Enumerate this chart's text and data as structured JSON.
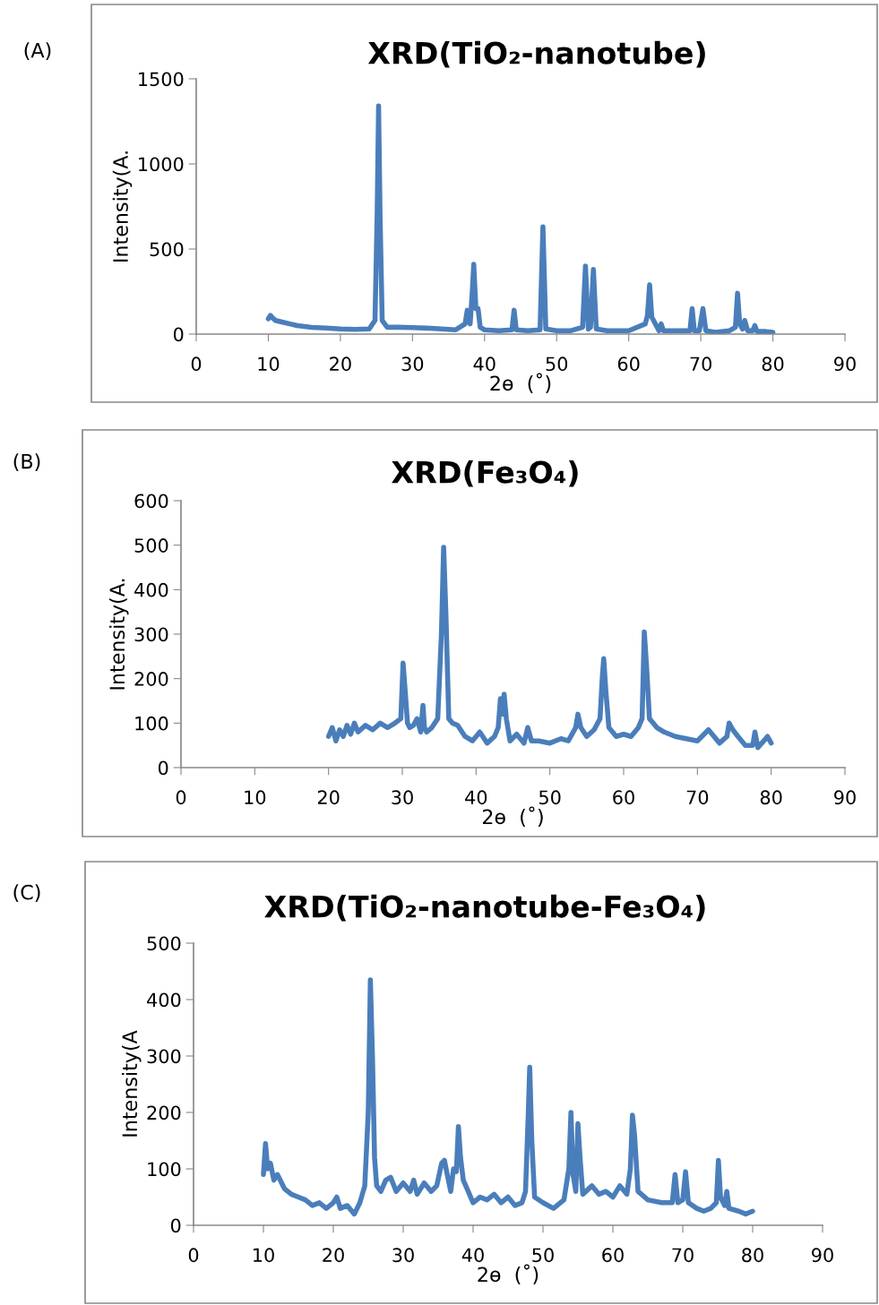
{
  "chart_data": [
    {
      "type": "line",
      "title": "XRD(TiO₂-nanotube)",
      "xlabel": "2ɵ  (˚)",
      "ylabel": "Intensity(A.",
      "annotations": [
        "(A)"
      ],
      "xlim": [
        0,
        90
      ],
      "xticks": [
        0,
        10,
        20,
        30,
        40,
        50,
        60,
        70,
        80,
        90
      ],
      "ylim": [
        0,
        1500
      ],
      "yticks": [
        0,
        500,
        1000,
        1500
      ],
      "series": [
        {
          "color": "#4a7ebb",
          "x": [
            10,
            10.3,
            10.6,
            11,
            12,
            13,
            14,
            15,
            16,
            18,
            20,
            22,
            24,
            24.8,
            25.1,
            25.3,
            25.5,
            25.8,
            26.5,
            28,
            30,
            32,
            34,
            36,
            37.3,
            37.6,
            38,
            38.3,
            38.5,
            38.8,
            39.1,
            39.4,
            40,
            42,
            43.8,
            44.1,
            44.4,
            46,
            47.7,
            48.1,
            48.5,
            50,
            52,
            53.6,
            54,
            54.4,
            54.7,
            55.1,
            55.5,
            57,
            60,
            62.3,
            62.6,
            62.9,
            63.2,
            64.2,
            64.5,
            64.8,
            66,
            68.5,
            68.8,
            69.1,
            69.8,
            70.3,
            70.7,
            72,
            74,
            74.8,
            75.1,
            75.4,
            75.8,
            76.1,
            76.5,
            77.2,
            77.5,
            77.8,
            79,
            80
          ],
          "values": [
            90,
            110,
            95,
            80,
            70,
            60,
            50,
            45,
            40,
            35,
            30,
            28,
            30,
            80,
            700,
            1340,
            700,
            80,
            40,
            40,
            38,
            35,
            30,
            25,
            60,
            140,
            60,
            250,
            410,
            150,
            150,
            40,
            25,
            20,
            25,
            140,
            25,
            20,
            25,
            630,
            30,
            20,
            20,
            40,
            400,
            30,
            40,
            380,
            30,
            20,
            20,
            60,
            110,
            290,
            100,
            20,
            60,
            20,
            20,
            20,
            150,
            20,
            20,
            150,
            20,
            10,
            20,
            40,
            240,
            60,
            30,
            80,
            20,
            20,
            50,
            15,
            15,
            10
          ]
        }
      ]
    },
    {
      "type": "line",
      "title": "XRD(Fe₃O₄)",
      "xlabel": "2ɵ  (˚)",
      "ylabel": "Intensity(A.",
      "annotations": [
        "(B)"
      ],
      "xlim": [
        0,
        90
      ],
      "xticks": [
        0,
        10,
        20,
        30,
        40,
        50,
        60,
        70,
        80,
        90
      ],
      "ylim": [
        0,
        600
      ],
      "yticks": [
        0,
        100,
        200,
        300,
        400,
        500,
        600
      ],
      "series": [
        {
          "color": "#4a7ebb",
          "x": [
            20,
            20.5,
            21,
            21.5,
            22,
            22.5,
            23,
            23.5,
            24,
            25,
            26,
            27,
            28,
            29,
            29.8,
            30.1,
            30.4,
            30.7,
            31,
            31.5,
            32,
            32.5,
            32.8,
            33,
            33.3,
            34,
            34.8,
            35.3,
            35.6,
            35.9,
            36.3,
            36.8,
            37.5,
            38.5,
            39.5,
            40.5,
            41.5,
            42.5,
            43,
            43.3,
            43.6,
            43.8,
            44.1,
            44.6,
            45.5,
            46.5,
            47,
            47.5,
            48.5,
            50,
            51.5,
            52.5,
            53.5,
            53.8,
            54.2,
            55,
            56,
            56.8,
            57.1,
            57.3,
            57.6,
            58,
            59,
            60,
            61,
            62,
            62.5,
            62.8,
            63.1,
            63.5,
            64,
            64.5,
            65.5,
            67,
            68.5,
            70,
            71.5,
            73,
            74,
            74.3,
            74.8,
            75.5,
            76.5,
            77.5,
            77.8,
            78.2,
            79,
            79.5,
            80
          ],
          "values": [
            70,
            90,
            60,
            85,
            70,
            95,
            75,
            100,
            80,
            95,
            85,
            100,
            90,
            100,
            110,
            235,
            170,
            100,
            90,
            95,
            110,
            80,
            140,
            90,
            80,
            90,
            110,
            300,
            495,
            350,
            110,
            100,
            95,
            70,
            60,
            80,
            55,
            70,
            90,
            155,
            120,
            165,
            110,
            60,
            75,
            55,
            90,
            60,
            60,
            55,
            65,
            60,
            90,
            120,
            90,
            70,
            85,
            110,
            200,
            245,
            170,
            90,
            70,
            75,
            70,
            90,
            110,
            305,
            230,
            110,
            100,
            90,
            80,
            70,
            65,
            60,
            85,
            55,
            70,
            100,
            85,
            70,
            50,
            50,
            80,
            45,
            60,
            70,
            55
          ]
        }
      ]
    },
    {
      "type": "line",
      "title": "XRD(TiO₂-nanotube-Fe₃O₄)",
      "xlabel": "2ɵ  (˚)",
      "ylabel": "Intensity(A",
      "annotations": [
        "(C)"
      ],
      "xlim": [
        0,
        90
      ],
      "xticks": [
        0,
        10,
        20,
        30,
        40,
        50,
        60,
        70,
        80,
        90
      ],
      "ylim": [
        0,
        500
      ],
      "yticks": [
        0,
        100,
        200,
        300,
        400,
        500
      ],
      "series": [
        {
          "color": "#4a7ebb",
          "x": [
            10,
            10.3,
            10.6,
            11,
            11.5,
            12,
            13,
            14,
            15,
            16,
            17,
            18,
            19,
            20,
            20.5,
            21,
            22,
            23,
            23.8,
            24.5,
            25,
            25.3,
            25.6,
            25.9,
            26.2,
            26.8,
            27.5,
            28.2,
            29,
            30,
            31,
            31.5,
            32,
            33,
            34,
            34.8,
            35.5,
            35.9,
            36.3,
            36.8,
            37.2,
            37.6,
            37.9,
            38.2,
            38.6,
            39.3,
            40,
            41,
            42,
            43,
            44,
            45,
            46,
            47,
            47.5,
            47.9,
            48.1,
            48.4,
            48.8,
            50,
            51.5,
            53,
            53.7,
            54,
            54.3,
            54.7,
            55,
            55.3,
            55.7,
            57,
            58,
            59,
            60,
            61,
            62,
            62.5,
            62.8,
            63.1,
            63.6,
            65,
            67,
            68.5,
            68.9,
            69.3,
            70,
            70.4,
            70.8,
            72,
            73,
            74,
            74.8,
            75.1,
            75.4,
            76,
            76.3,
            76.6,
            78,
            79,
            80
          ],
          "values": [
            90,
            145,
            100,
            110,
            80,
            90,
            65,
            55,
            50,
            45,
            35,
            40,
            30,
            40,
            50,
            30,
            35,
            20,
            40,
            70,
            200,
            435,
            300,
            120,
            70,
            60,
            80,
            85,
            60,
            75,
            60,
            80,
            55,
            75,
            60,
            70,
            110,
            115,
            90,
            60,
            100,
            95,
            175,
            120,
            80,
            60,
            40,
            50,
            45,
            55,
            40,
            50,
            35,
            40,
            60,
            200,
            280,
            150,
            50,
            40,
            30,
            45,
            100,
            200,
            90,
            60,
            180,
            120,
            55,
            70,
            55,
            60,
            50,
            70,
            55,
            100,
            195,
            160,
            60,
            45,
            40,
            40,
            90,
            40,
            45,
            95,
            40,
            30,
            25,
            30,
            40,
            115,
            50,
            35,
            60,
            30,
            25,
            20,
            25
          ]
        }
      ]
    }
  ]
}
